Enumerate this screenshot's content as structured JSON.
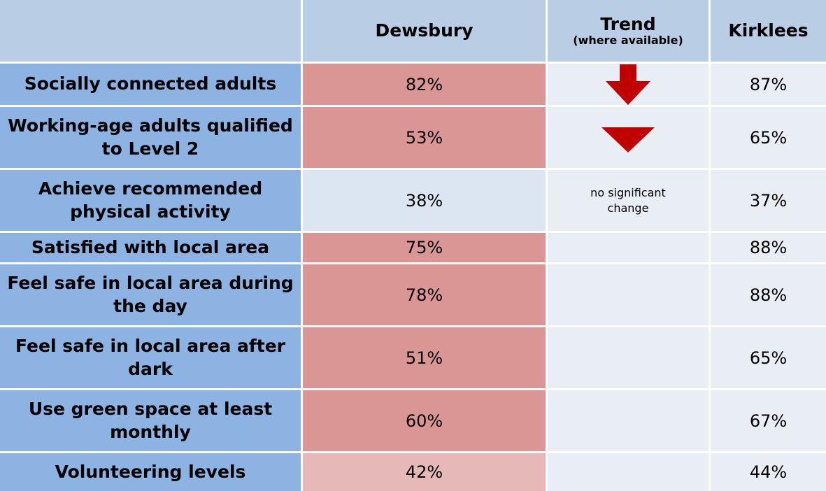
{
  "table": {
    "header": [
      "Dewsbury",
      "Trend",
      "(where available)",
      "Kirklees"
    ],
    "rows": [
      {
        "label": "Socially connected adults",
        "dewsbury": "82%",
        "dewsbury_color": "#da9694",
        "kirklees": "87%"
      },
      {
        "label": "Working-age adults qualified to Level 2",
        "dewsbury": "53%",
        "dewsbury_color": "#da9694",
        "kirklees": "65%"
      },
      {
        "label": "Achieve recommended physical activity",
        "dewsbury": "38%",
        "dewsbury_color": "#dce6f2",
        "trend": "no significant change",
        "kirklees": "37%"
      },
      {
        "label": "Satisfied with local area",
        "dewsbury": "75%",
        "dewsbury_color": "#da9694",
        "kirklees": "88%"
      },
      {
        "label": "Feel safe in local area during the day",
        "dewsbury": "78%",
        "dewsbury_color": "#da9694",
        "kirklees": "88%"
      },
      {
        "label": "Feel safe in local area after dark",
        "dewsbury": "51%",
        "dewsbury_color": "#da9694",
        "kirklees": "65%"
      },
      {
        "label": "Use green space at least monthly",
        "dewsbury": "60%",
        "dewsbury_color": "#da9694",
        "kirklees": "67%"
      },
      {
        "label": "Volunteering levels",
        "dewsbury": "42%",
        "dewsbury_color": "#e6b9b8",
        "kirklees": "44%"
      }
    ]
  }
}
